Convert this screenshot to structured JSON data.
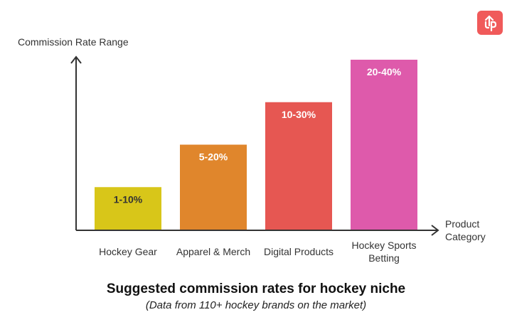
{
  "chart_data": {
    "type": "bar",
    "ylabel": "Commission Rate Range",
    "xlabel": [
      "Product",
      "Category"
    ],
    "categories": [
      [
        "Hockey Gear"
      ],
      [
        "Apparel & Merch"
      ],
      [
        "Digital Products"
      ],
      [
        "Hockey Sports",
        "Betting"
      ]
    ],
    "data_labels": [
      "1-10%",
      "5-20%",
      "10-30%",
      "20-40%"
    ],
    "series": [
      {
        "values": [
          [
            1,
            10
          ],
          [
            5,
            20
          ],
          [
            10,
            30
          ],
          [
            20,
            40
          ]
        ]
      }
    ],
    "colors": [
      "#d8c619",
      "#e0862c",
      "#e65752",
      "#de5aab"
    ],
    "label_colors": [
      "#333333",
      "#ffffff",
      "#ffffff",
      "#ffffff"
    ],
    "ylim": [
      0,
      40
    ],
    "grid": false,
    "legend": "none"
  },
  "caption": {
    "title": "Suggested commission rates for hockey niche",
    "subtitle": "(Data from 110+ hockey brands on the market)"
  },
  "logo": {
    "icon": "up-arrow-logo-icon",
    "color": "#f05a5a"
  }
}
